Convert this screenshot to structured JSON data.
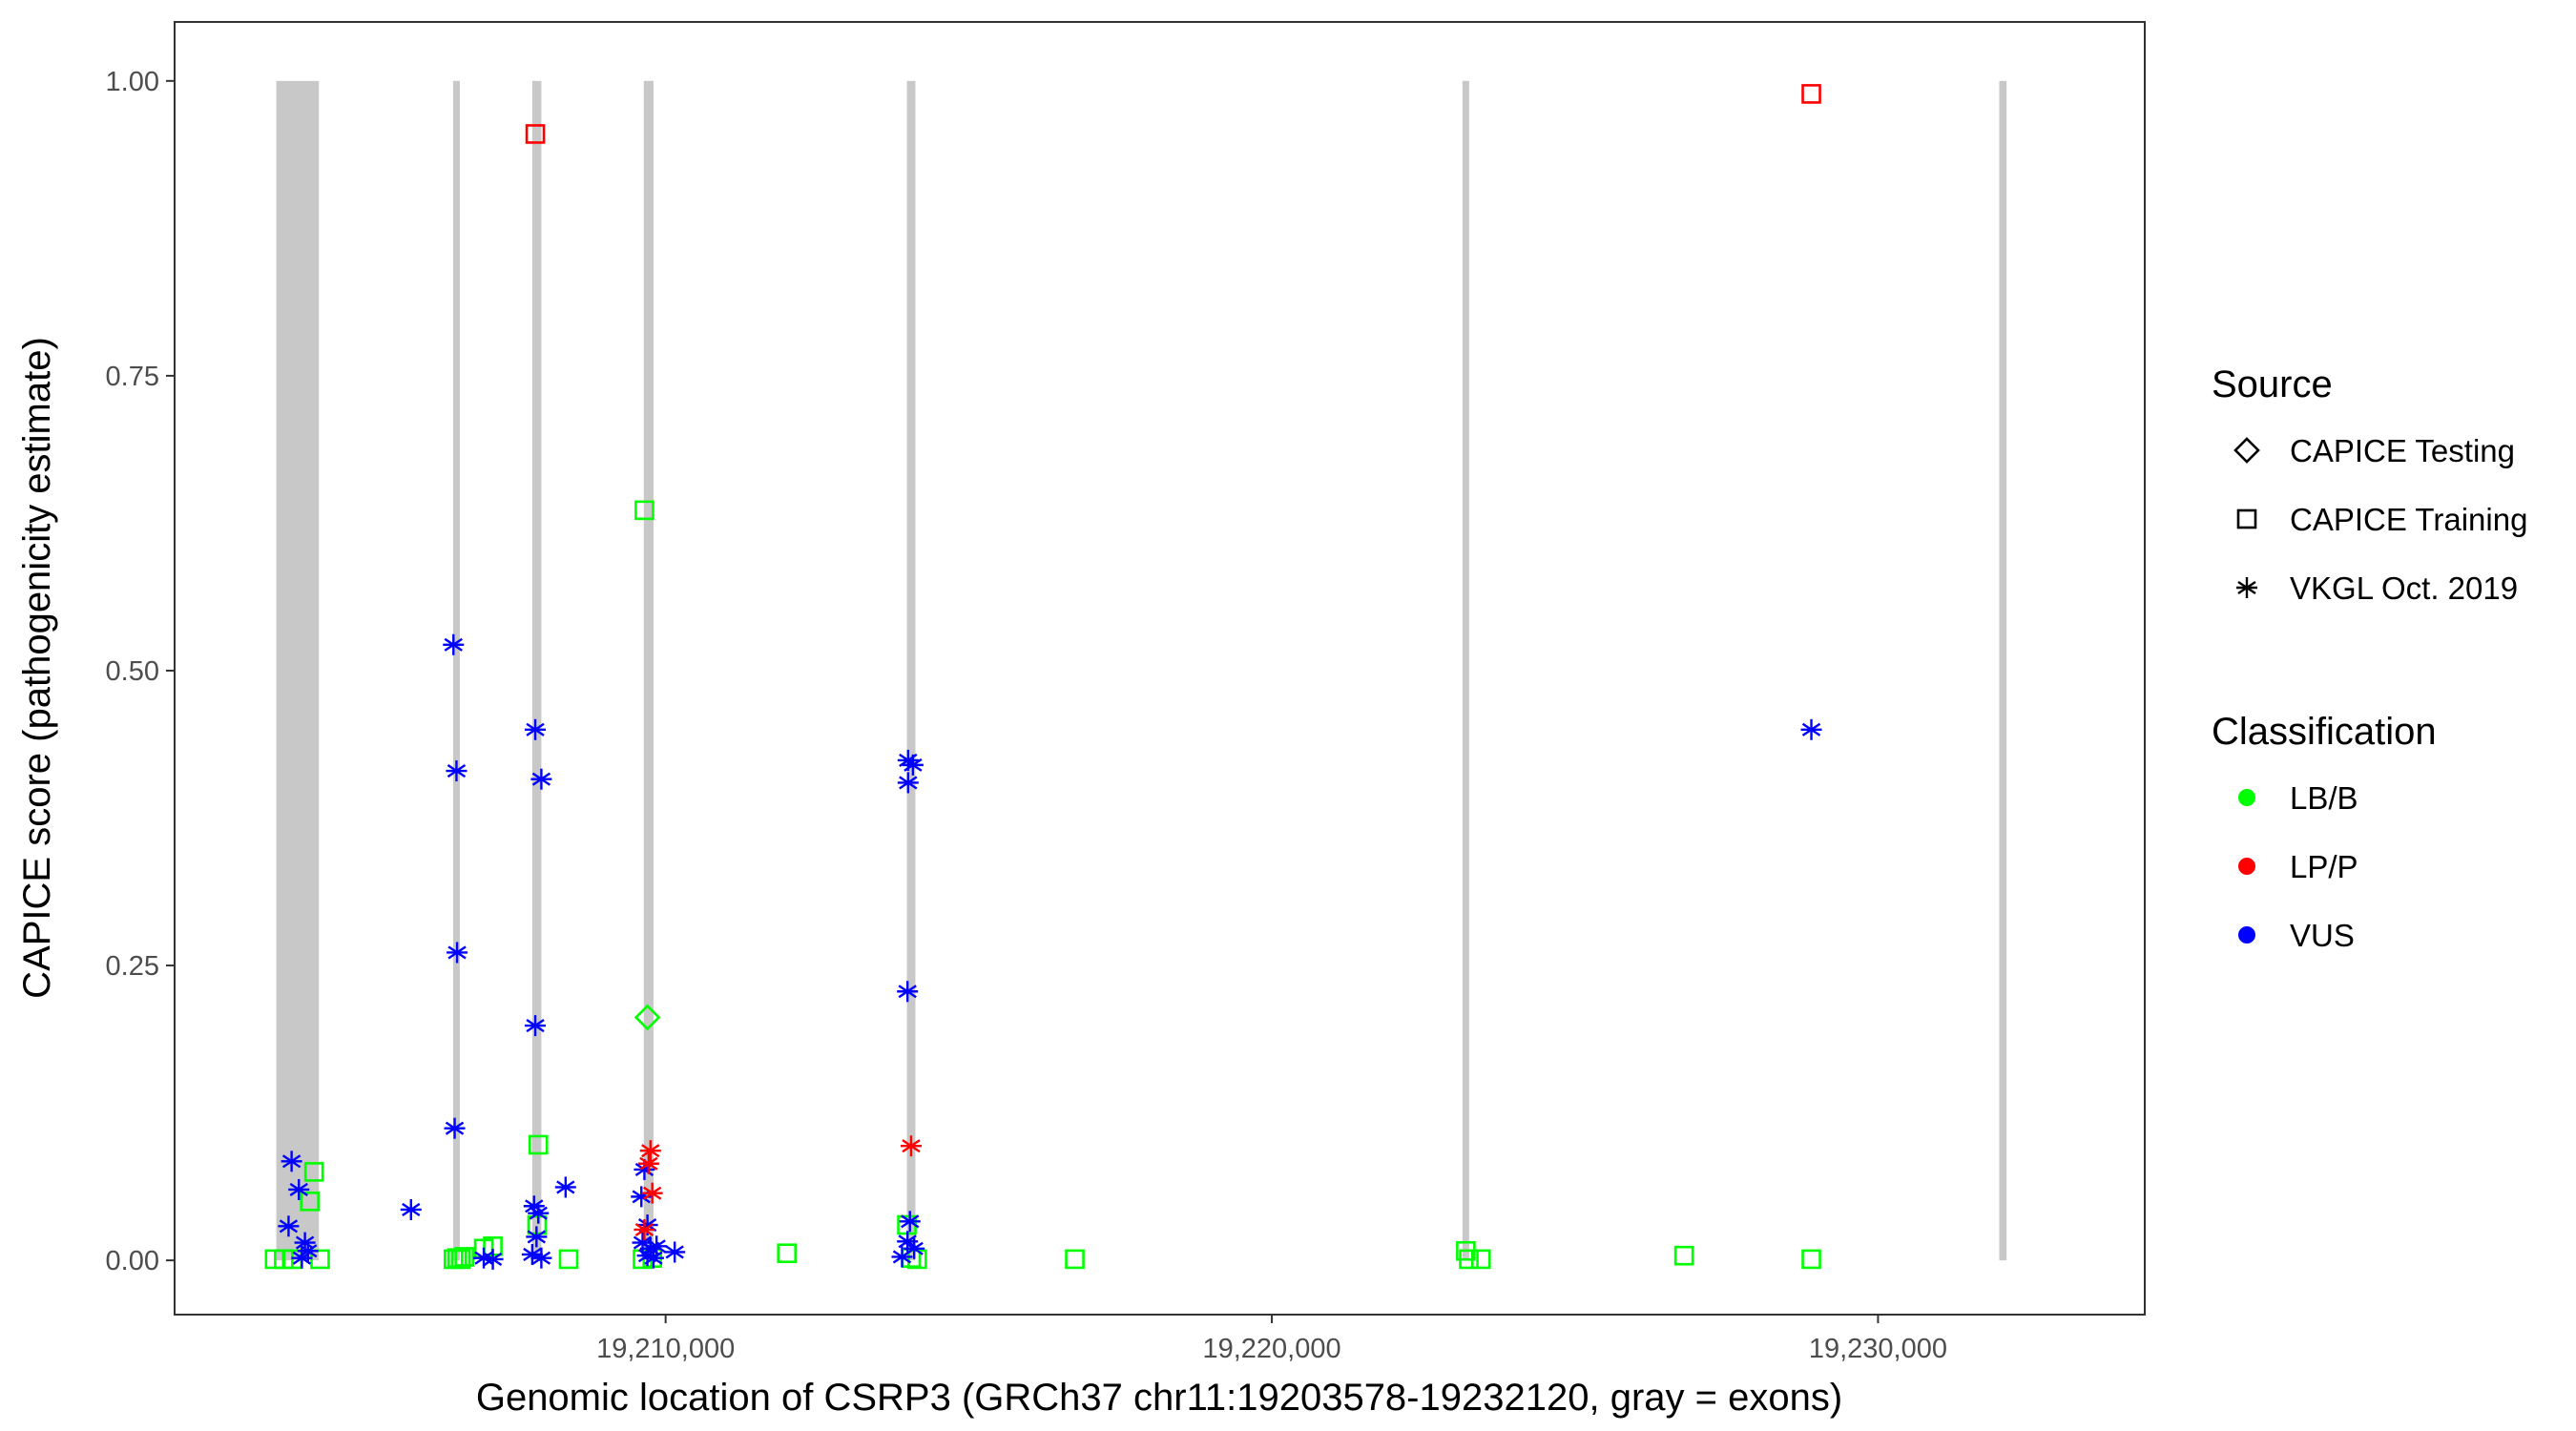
{
  "chart_data": {
    "type": "scatter",
    "title": "",
    "xlabel": "Genomic location of CSRP3 (GRCh37 chr11:19203578-19232120, gray = exons)",
    "ylabel": "CAPICE score (pathogenicity estimate)",
    "xlim": [
      19201900,
      19234400
    ],
    "ylim": [
      -0.046,
      1.05
    ],
    "x_ticks": [
      19210000,
      19220000,
      19230000
    ],
    "x_tick_labels": [
      "19,210,000",
      "19,220,000",
      "19,230,000"
    ],
    "y_ticks": [
      0,
      0.25,
      0.5,
      0.75,
      1.0
    ],
    "y_tick_labels": [
      "0.00",
      "0.25",
      "0.50",
      "0.75",
      "1.00"
    ],
    "grid": false,
    "legend_position": "right",
    "colors": {
      "LB/B": "#00ff00",
      "LP/P": "#ff0000",
      "VUS": "#0000ff",
      "exon": "#c8c8c8"
    },
    "exons": [
      [
        19203578,
        19204280
      ],
      [
        19206500,
        19206600
      ],
      [
        19207800,
        19207950
      ],
      [
        19209640,
        19209800
      ],
      [
        19213980,
        19214120
      ],
      [
        19223150,
        19223250
      ],
      [
        19232000,
        19232120
      ]
    ],
    "legend": {
      "source_title": "Source",
      "source_entries": [
        {
          "label": "CAPICE Testing",
          "shape": "diamond"
        },
        {
          "label": "CAPICE Training",
          "shape": "square"
        },
        {
          "label": "VKGL Oct. 2019",
          "shape": "asterisk"
        }
      ],
      "class_title": "Classification",
      "class_entries": [
        {
          "label": "LB/B",
          "color": "#00ff00"
        },
        {
          "label": "LP/P",
          "color": "#ff0000"
        },
        {
          "label": "VUS",
          "color": "#0000ff"
        }
      ]
    },
    "series": [
      {
        "name": "CAPICE Training",
        "shape": "square",
        "points": [
          {
            "x": 19203550,
            "y": 0.001,
            "c": "LB/B"
          },
          {
            "x": 19203700,
            "y": 0.001,
            "c": "LB/B"
          },
          {
            "x": 19203850,
            "y": 0.001,
            "c": "LB/B"
          },
          {
            "x": 19204130,
            "y": 0.05,
            "c": "LB/B"
          },
          {
            "x": 19204200,
            "y": 0.075,
            "c": "LB/B"
          },
          {
            "x": 19204300,
            "y": 0.001,
            "c": "LB/B"
          },
          {
            "x": 19206500,
            "y": 0.001,
            "c": "LB/B"
          },
          {
            "x": 19206560,
            "y": 0.002,
            "c": "LB/B"
          },
          {
            "x": 19206620,
            "y": 0.001,
            "c": "LB/B"
          },
          {
            "x": 19206680,
            "y": 0.003,
            "c": "LB/B"
          },
          {
            "x": 19207000,
            "y": 0.01,
            "c": "LB/B"
          },
          {
            "x": 19207150,
            "y": 0.012,
            "c": "LB/B"
          },
          {
            "x": 19207850,
            "y": 0.955,
            "c": "LP/P"
          },
          {
            "x": 19207900,
            "y": 0.098,
            "c": "LB/B"
          },
          {
            "x": 19207880,
            "y": 0.03,
            "c": "LB/B"
          },
          {
            "x": 19208400,
            "y": 0.001,
            "c": "LB/B"
          },
          {
            "x": 19209650,
            "y": 0.636,
            "c": "LB/B"
          },
          {
            "x": 19209620,
            "y": 0.001,
            "c": "LB/B"
          },
          {
            "x": 19209780,
            "y": 0.002,
            "c": "LB/B"
          },
          {
            "x": 19212000,
            "y": 0.006,
            "c": "LB/B"
          },
          {
            "x": 19213980,
            "y": 0.03,
            "c": "LB/B"
          },
          {
            "x": 19214050,
            "y": 0.002,
            "c": "LB/B"
          },
          {
            "x": 19214150,
            "y": 0.001,
            "c": "LB/B"
          },
          {
            "x": 19216750,
            "y": 0.001,
            "c": "LB/B"
          },
          {
            "x": 19223200,
            "y": 0.008,
            "c": "LB/B"
          },
          {
            "x": 19223250,
            "y": 0.001,
            "c": "LB/B"
          },
          {
            "x": 19223450,
            "y": 0.001,
            "c": "LB/B"
          },
          {
            "x": 19226800,
            "y": 0.004,
            "c": "LB/B"
          },
          {
            "x": 19228900,
            "y": 0.989,
            "c": "LP/P"
          },
          {
            "x": 19228900,
            "y": 0.001,
            "c": "LB/B"
          }
        ]
      },
      {
        "name": "CAPICE Testing",
        "shape": "diamond",
        "points": [
          {
            "x": 19209700,
            "y": 0.206,
            "c": "LB/B"
          }
        ]
      },
      {
        "name": "VKGL Oct. 2019",
        "shape": "asterisk",
        "points": [
          {
            "x": 19203830,
            "y": 0.084,
            "c": "VUS"
          },
          {
            "x": 19203950,
            "y": 0.06,
            "c": "VUS"
          },
          {
            "x": 19203780,
            "y": 0.029,
            "c": "VUS"
          },
          {
            "x": 19204050,
            "y": 0.015,
            "c": "VUS"
          },
          {
            "x": 19204100,
            "y": 0.008,
            "c": "VUS"
          },
          {
            "x": 19204000,
            "y": 0.002,
            "c": "VUS"
          },
          {
            "x": 19205800,
            "y": 0.043,
            "c": "VUS"
          },
          {
            "x": 19206500,
            "y": 0.522,
            "c": "VUS"
          },
          {
            "x": 19206550,
            "y": 0.415,
            "c": "VUS"
          },
          {
            "x": 19206560,
            "y": 0.261,
            "c": "VUS"
          },
          {
            "x": 19206520,
            "y": 0.112,
            "c": "VUS"
          },
          {
            "x": 19207000,
            "y": 0.002,
            "c": "VUS"
          },
          {
            "x": 19207150,
            "y": 0.001,
            "c": "VUS"
          },
          {
            "x": 19207850,
            "y": 0.45,
            "c": "VUS"
          },
          {
            "x": 19207950,
            "y": 0.408,
            "c": "VUS"
          },
          {
            "x": 19207850,
            "y": 0.199,
            "c": "VUS"
          },
          {
            "x": 19207830,
            "y": 0.046,
            "c": "VUS"
          },
          {
            "x": 19207900,
            "y": 0.04,
            "c": "VUS"
          },
          {
            "x": 19207870,
            "y": 0.02,
            "c": "VUS"
          },
          {
            "x": 19207800,
            "y": 0.005,
            "c": "VUS"
          },
          {
            "x": 19207950,
            "y": 0.002,
            "c": "VUS"
          },
          {
            "x": 19208350,
            "y": 0.062,
            "c": "VUS"
          },
          {
            "x": 19209600,
            "y": 0.054,
            "c": "VUS"
          },
          {
            "x": 19209650,
            "y": 0.077,
            "c": "VUS"
          },
          {
            "x": 19209700,
            "y": 0.03,
            "c": "VUS"
          },
          {
            "x": 19209620,
            "y": 0.015,
            "c": "VUS"
          },
          {
            "x": 19209750,
            "y": 0.01,
            "c": "VUS"
          },
          {
            "x": 19209700,
            "y": 0.004,
            "c": "VUS"
          },
          {
            "x": 19209800,
            "y": 0.002,
            "c": "VUS"
          },
          {
            "x": 19209850,
            "y": 0.012,
            "c": "VUS"
          },
          {
            "x": 19210150,
            "y": 0.007,
            "c": "VUS"
          },
          {
            "x": 19209750,
            "y": 0.093,
            "c": "LP/P"
          },
          {
            "x": 19209720,
            "y": 0.082,
            "c": "LP/P"
          },
          {
            "x": 19209780,
            "y": 0.057,
            "c": "LP/P"
          },
          {
            "x": 19209650,
            "y": 0.026,
            "c": "LP/P"
          },
          {
            "x": 19214000,
            "y": 0.424,
            "c": "VUS"
          },
          {
            "x": 19214080,
            "y": 0.42,
            "c": "VUS"
          },
          {
            "x": 19214000,
            "y": 0.405,
            "c": "VUS"
          },
          {
            "x": 19213990,
            "y": 0.228,
            "c": "VUS"
          },
          {
            "x": 19214050,
            "y": 0.097,
            "c": "LP/P"
          },
          {
            "x": 19214030,
            "y": 0.033,
            "c": "VUS"
          },
          {
            "x": 19213990,
            "y": 0.016,
            "c": "VUS"
          },
          {
            "x": 19214100,
            "y": 0.01,
            "c": "VUS"
          },
          {
            "x": 19213900,
            "y": 0.003,
            "c": "VUS"
          },
          {
            "x": 19228900,
            "y": 0.45,
            "c": "VUS"
          }
        ]
      }
    ]
  }
}
